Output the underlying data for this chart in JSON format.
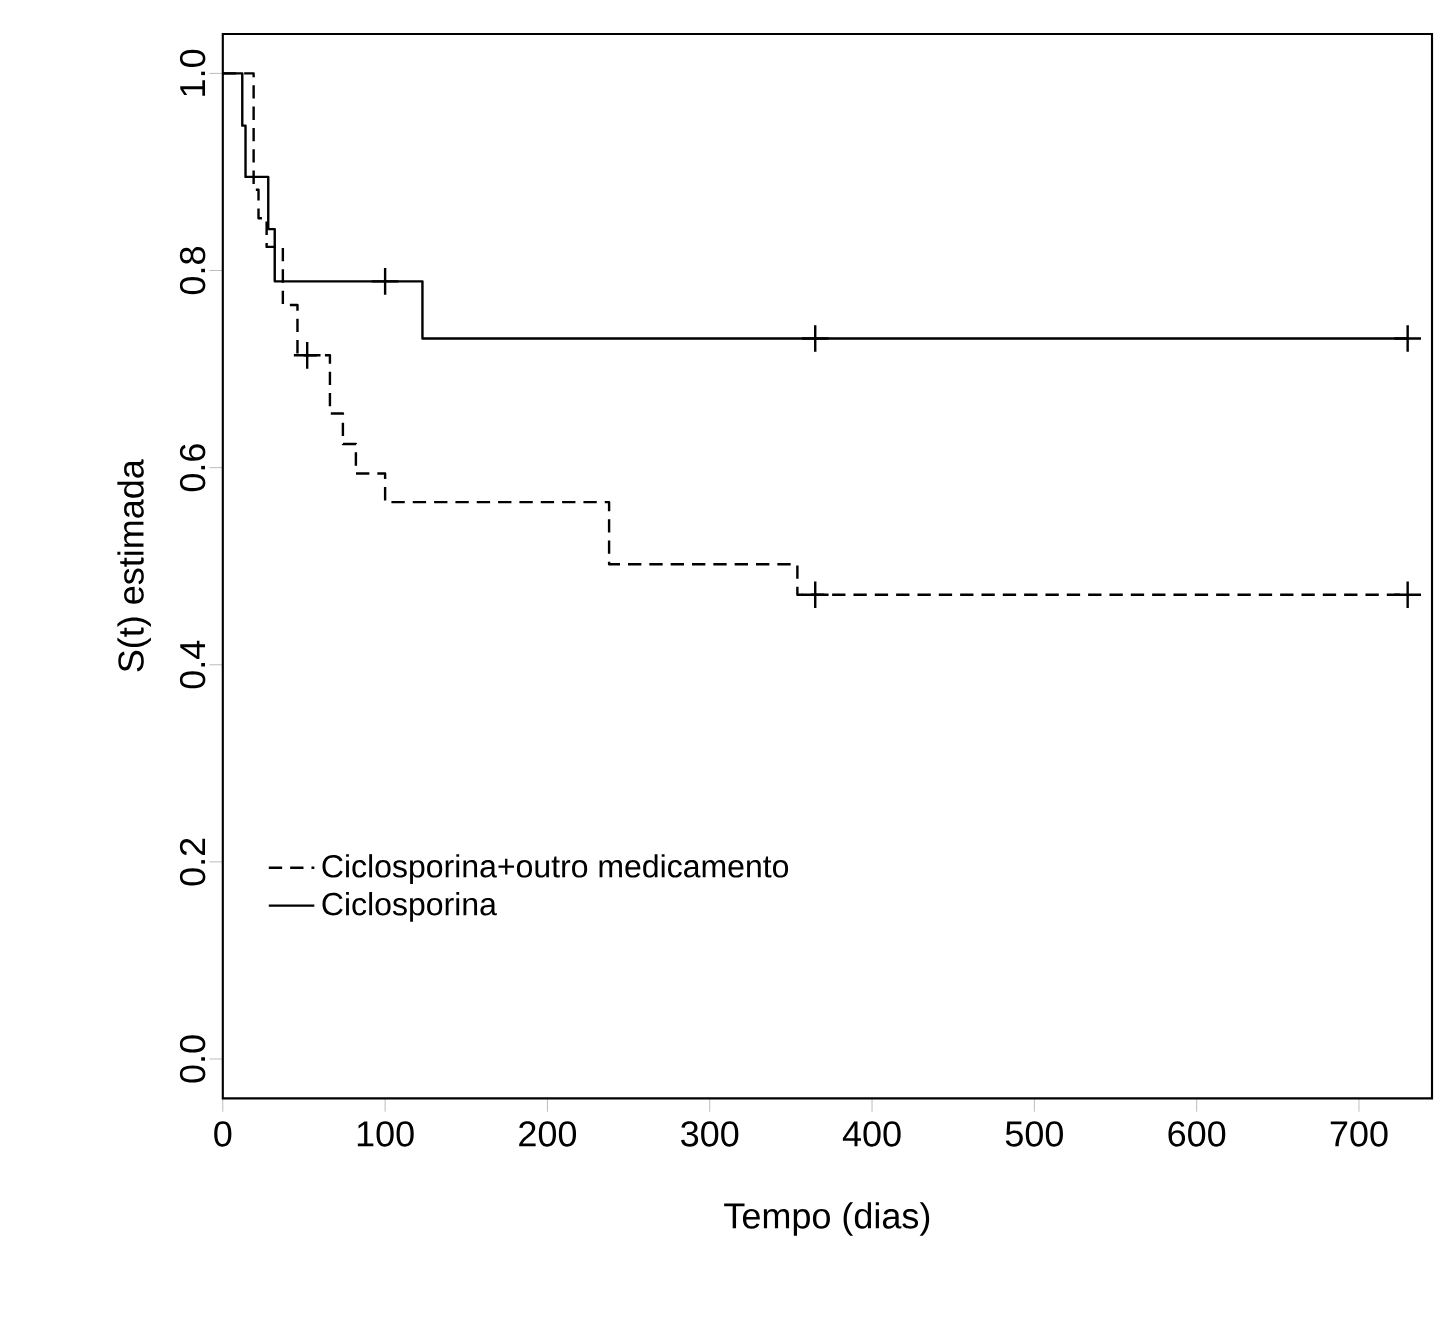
{
  "chart_data": {
    "type": "step",
    "xlabel": "Tempo (dias)",
    "ylabel": "S(t) estimada",
    "xlim": [
      0,
      745
    ],
    "ylim": [
      -0.04,
      1.04
    ],
    "xticks": [
      0,
      100,
      200,
      300,
      400,
      500,
      600,
      700
    ],
    "yticks": [
      {
        "value": 0,
        "label": "0.0"
      },
      {
        "value": 0.2,
        "label": "0.2"
      },
      {
        "value": 0.4,
        "label": "0.4"
      },
      {
        "value": 0.6,
        "label": "0.6"
      },
      {
        "value": 0.8,
        "label": "0.8"
      },
      {
        "value": 1.0,
        "label": "1.0"
      }
    ],
    "grid": false,
    "legend": "bottom left",
    "series": [
      {
        "name": "Ciclosporina+outro medicamento",
        "color": "#000000",
        "line_style": "dashed",
        "x": [
          0,
          19,
          22,
          27,
          37,
          46,
          66,
          74,
          82,
          100,
          238,
          354,
          730
        ],
        "values": [
          1.0,
          0.882,
          0.853,
          0.824,
          0.765,
          0.714,
          0.655,
          0.624,
          0.594,
          0.565,
          0.502,
          0.471,
          0.471
        ]
      },
      {
        "name": "Ciclosporina",
        "color": "#000000",
        "line_style": "solid",
        "x": [
          0,
          12,
          14,
          28,
          32,
          123,
          730
        ],
        "values": [
          1.0,
          0.947,
          0.895,
          0.842,
          0.789,
          0.731,
          0.731
        ]
      },
      {
        "type": "scatter",
        "marker": "cross",
        "color": "#000000",
        "x": [
          52,
          365,
          730
        ],
        "values": [
          0.714,
          0.471,
          0.471
        ]
      },
      {
        "type": "scatter",
        "marker": "cross",
        "color": "#000000",
        "x": [
          100,
          365,
          730
        ],
        "values": [
          0.789,
          0.731,
          0.731
        ]
      }
    ]
  }
}
